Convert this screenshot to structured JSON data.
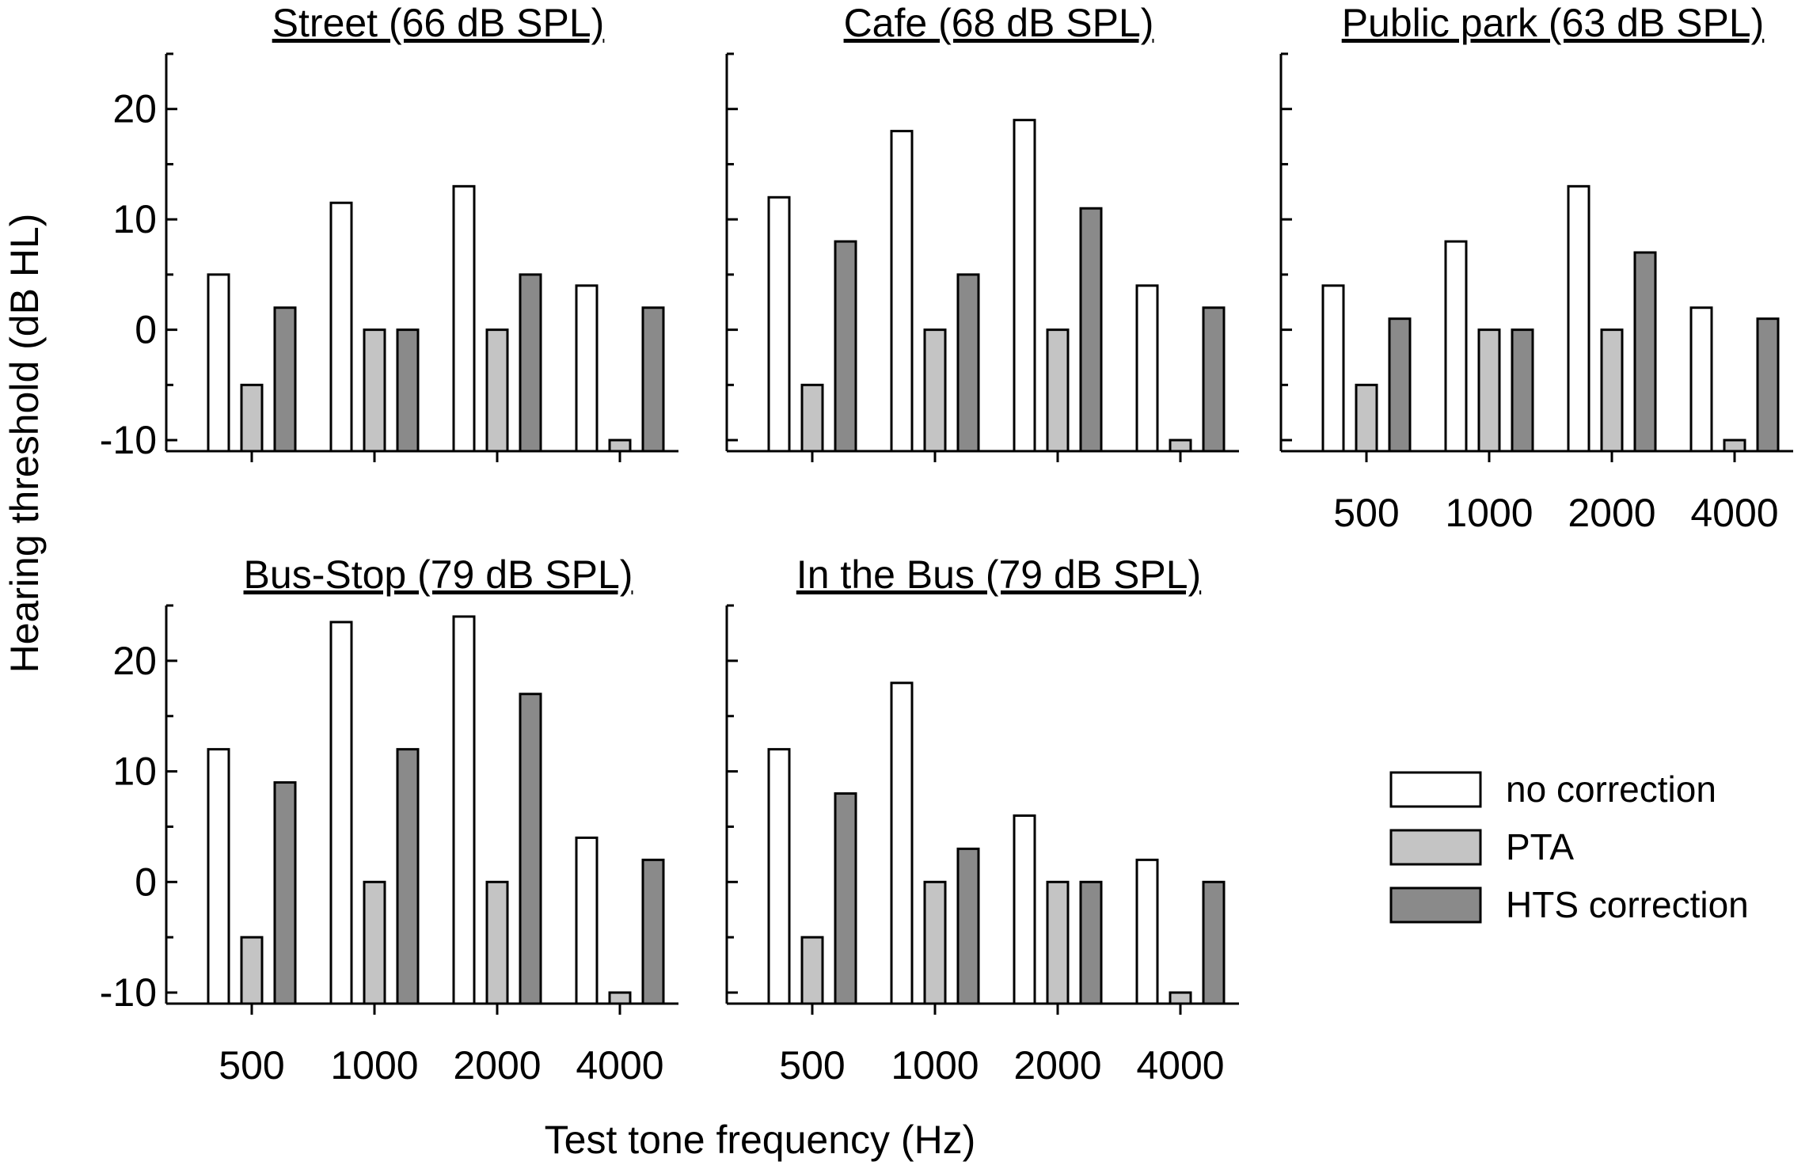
{
  "chart_data": {
    "type": "bar",
    "ylabel": "Hearing threshold (dB HL)",
    "xlabel": "Test tone frequency (Hz)",
    "categories": [
      "500",
      "1000",
      "2000",
      "4000"
    ],
    "ylim": [
      -11,
      25
    ],
    "yticks": [
      -10,
      0,
      10,
      20
    ],
    "colors": {
      "no correction": "#ffffff",
      "PTA": "#c4c4c4",
      "HTS correction": "#8a8a8a"
    },
    "legend": {
      "position": "bottom-right",
      "entries": [
        "no correction",
        "PTA",
        "HTS correction"
      ]
    },
    "panels": [
      {
        "title": "Street (66 dB SPL)",
        "series": [
          {
            "name": "no correction",
            "values": [
              5,
              11.5,
              13,
              4
            ]
          },
          {
            "name": "PTA",
            "values": [
              -5,
              0,
              0,
              -10
            ]
          },
          {
            "name": "HTS correction",
            "values": [
              2,
              0,
              5,
              2
            ]
          }
        ]
      },
      {
        "title": "Cafe (68 dB SPL)",
        "series": [
          {
            "name": "no correction",
            "values": [
              12,
              18,
              19,
              4
            ]
          },
          {
            "name": "PTA",
            "values": [
              -5,
              0,
              0,
              -10
            ]
          },
          {
            "name": "HTS correction",
            "values": [
              8,
              5,
              11,
              2
            ]
          }
        ]
      },
      {
        "title": "Public park (63 dB SPL)",
        "series": [
          {
            "name": "no correction",
            "values": [
              4,
              8,
              13,
              2
            ]
          },
          {
            "name": "PTA",
            "values": [
              -5,
              0,
              0,
              -10
            ]
          },
          {
            "name": "HTS correction",
            "values": [
              1,
              0,
              7,
              1
            ]
          }
        ]
      },
      {
        "title": "Bus-Stop (79 dB SPL)",
        "series": [
          {
            "name": "no correction",
            "values": [
              12,
              23.5,
              24,
              4
            ]
          },
          {
            "name": "PTA",
            "values": [
              -5,
              0,
              0,
              -10
            ]
          },
          {
            "name": "HTS correction",
            "values": [
              9,
              12,
              17,
              2
            ]
          }
        ]
      },
      {
        "title": "In the Bus (79 dB SPL)",
        "series": [
          {
            "name": "no correction",
            "values": [
              12,
              18,
              6,
              2
            ]
          },
          {
            "name": "PTA",
            "values": [
              -5,
              0,
              0,
              -10
            ]
          },
          {
            "name": "HTS correction",
            "values": [
              8,
              3,
              0,
              0
            ]
          }
        ]
      }
    ]
  }
}
